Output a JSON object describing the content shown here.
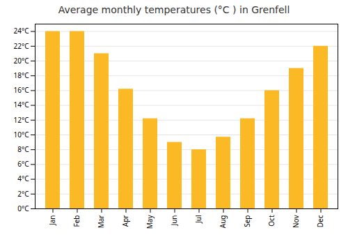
{
  "chart_data": {
    "type": "bar",
    "title": "Average monthly temperatures (°C ) in Grenfell",
    "categories": [
      "Jan",
      "Feb",
      "Mar",
      "Apr",
      "May",
      "Jun",
      "Jul",
      "Aug",
      "Sep",
      "Oct",
      "Nov",
      "Dec"
    ],
    "values": [
      24,
      24,
      21,
      16.2,
      12.2,
      9,
      8,
      9.7,
      12.2,
      16,
      19,
      22
    ],
    "color": "#FBBA25",
    "ylim": [
      0,
      25
    ],
    "yticks": [
      {
        "value": 0,
        "label": "0°C"
      },
      {
        "value": 2,
        "label": "2°C"
      },
      {
        "value": 4,
        "label": "4°C"
      },
      {
        "value": 6,
        "label": "6°C"
      },
      {
        "value": 8,
        "label": "8°C"
      },
      {
        "value": 10,
        "label": "10°C"
      },
      {
        "value": 12,
        "label": "12°C"
      },
      {
        "value": 14,
        "label": "14°C"
      },
      {
        "value": 16,
        "label": "16°C"
      },
      {
        "value": 18,
        "label": "18°C"
      },
      {
        "value": 20,
        "label": "20°C"
      },
      {
        "value": 22,
        "label": "22°C"
      },
      {
        "value": 24,
        "label": "24°C"
      }
    ],
    "grid": true
  }
}
